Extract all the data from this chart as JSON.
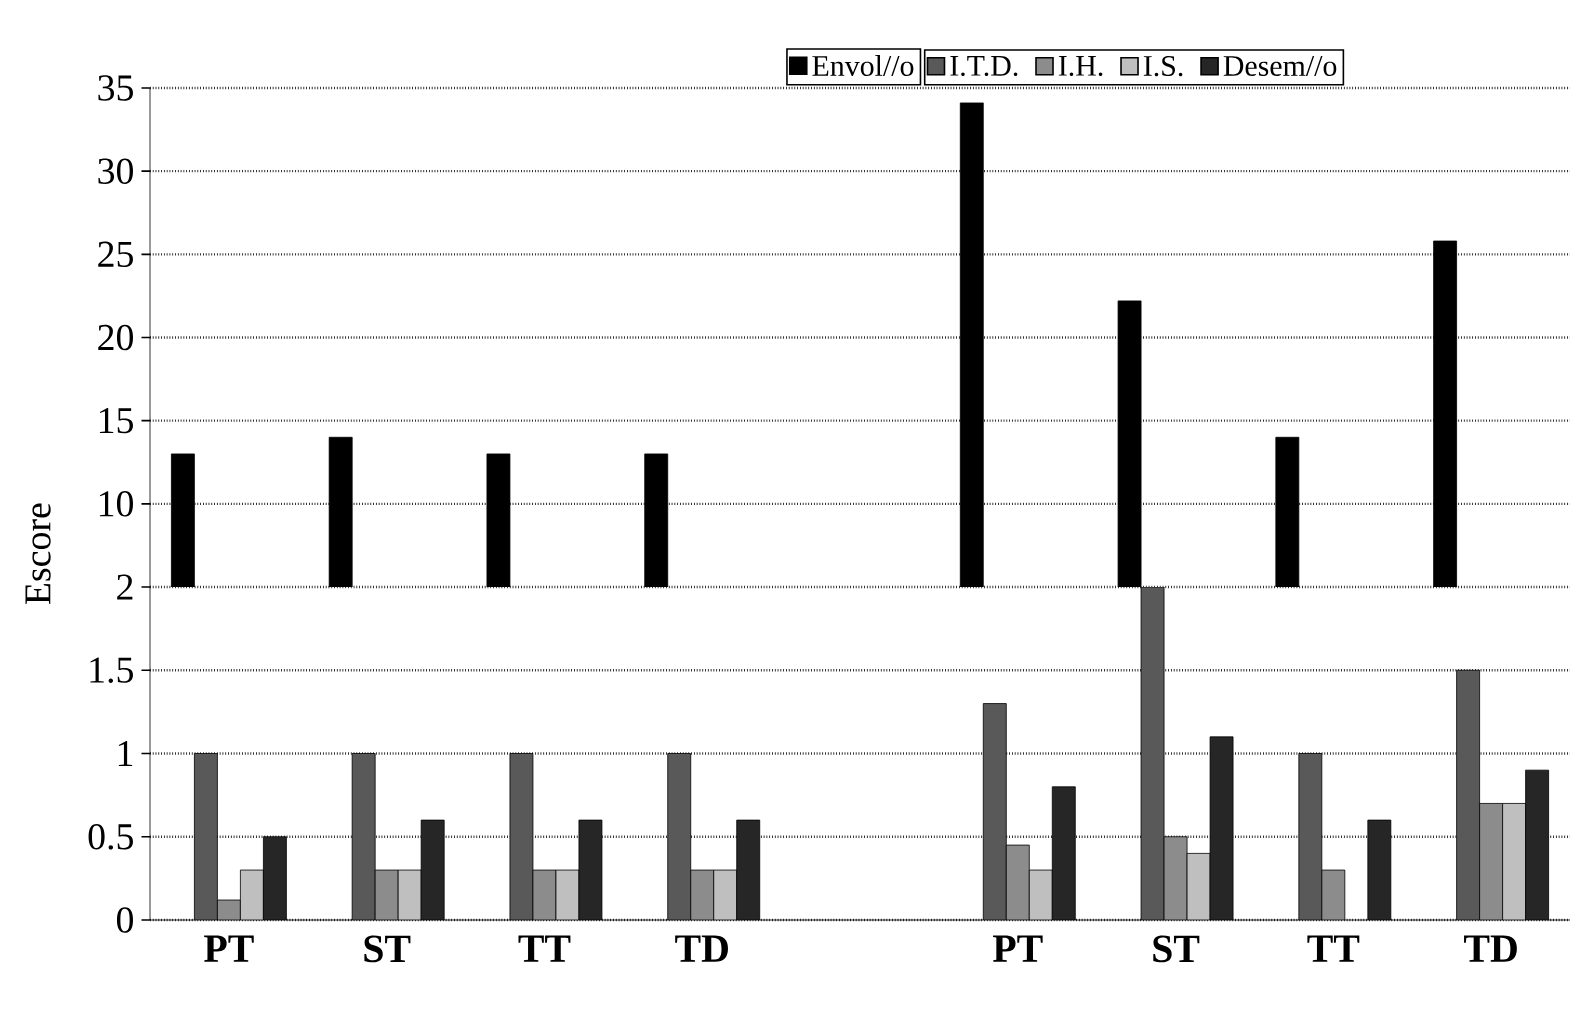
{
  "chart_data": [
    {
      "type": "bar",
      "ylim": [
        5,
        35
      ],
      "yticks": [
        10,
        15,
        20,
        25,
        30,
        35
      ],
      "grid": "y",
      "tick_labels": "y",
      "legend": "top right",
      "series": [
        {
          "name": "Envol//o",
          "color": "#000000",
          "values": [
            13,
            14,
            13,
            13,
            null,
            34.1,
            22.2,
            14,
            25.8
          ]
        }
      ]
    },
    {
      "type": "bar",
      "categories": [
        "PT",
        "ST",
        "TT",
        "TD",
        null,
        "PT",
        "ST",
        "TT",
        "TD"
      ],
      "ylabel": "Escore",
      "ylim": [
        0,
        2
      ],
      "yticks": [
        0,
        0.5,
        1,
        1.5,
        2
      ],
      "grid": "y",
      "legend": "top right",
      "series": [
        {
          "name": "I.T.D.",
          "color": "#595959",
          "values": [
            1,
            1,
            1,
            1,
            null,
            1.3,
            2,
            1,
            1.5
          ]
        },
        {
          "name": "I.H.",
          "color": "#8c8c8c",
          "values": [
            0.12,
            0.3,
            0.3,
            0.3,
            null,
            0.45,
            0.5,
            0.3,
            0.7
          ]
        },
        {
          "name": "I.S.",
          "color": "#bfbfbf",
          "values": [
            0.3,
            0.3,
            0.3,
            0.3,
            null,
            0.3,
            0.4,
            null,
            0.7
          ]
        },
        {
          "name": "Desem//o",
          "color": "#262626",
          "values": [
            0.5,
            0.6,
            0.6,
            0.6,
            null,
            0.8,
            1.1,
            0.6,
            0.9
          ]
        }
      ]
    }
  ]
}
